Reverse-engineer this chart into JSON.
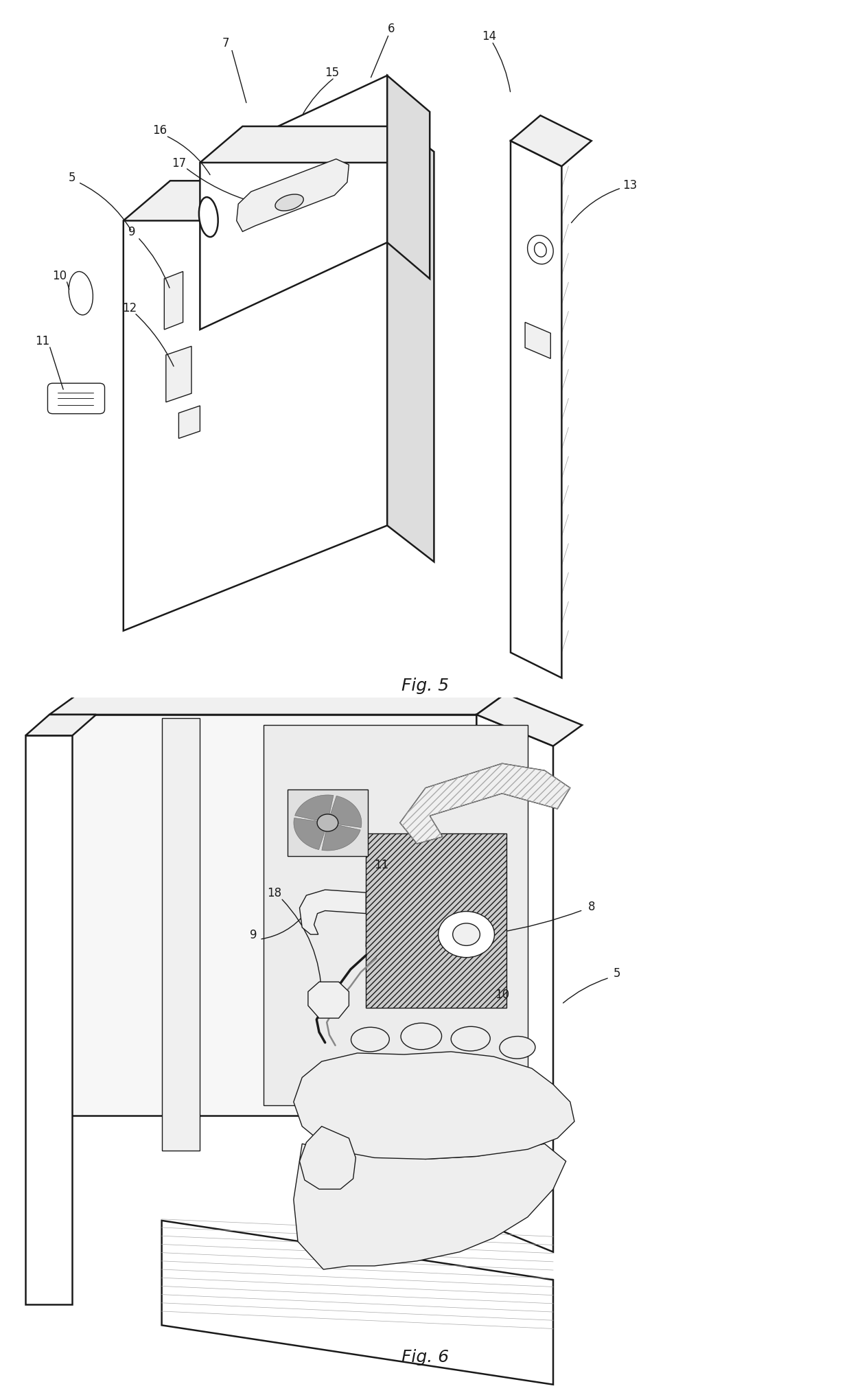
{
  "fig_width": 12.4,
  "fig_height": 20.33,
  "bg_color": "#ffffff",
  "lc": "#1a1a1a",
  "fig5_caption": "Fig. 5",
  "fig6_caption": "Fig. 6",
  "lw_main": 1.8,
  "lw_thin": 1.0,
  "lw_thick": 2.2
}
